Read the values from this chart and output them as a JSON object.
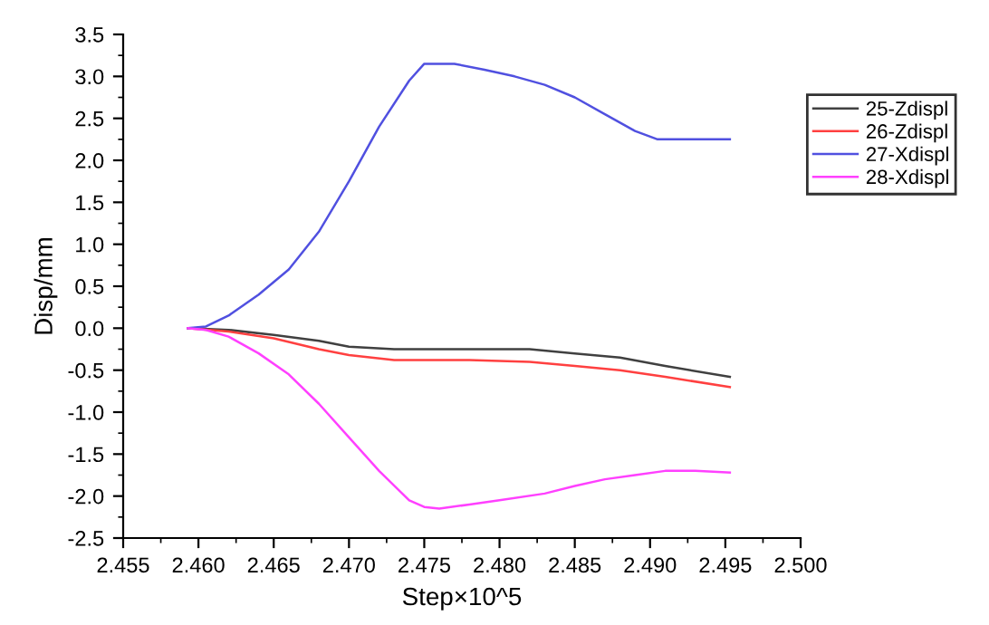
{
  "chart_data": {
    "type": "line",
    "xlabel": "Step×10^5",
    "ylabel": "Disp/mm",
    "xlim": [
      2.455,
      2.5
    ],
    "xticks": [
      {
        "value": 2.455,
        "label": "2.455"
      },
      {
        "value": 2.46,
        "label": "2.460"
      },
      {
        "value": 2.465,
        "label": "2.465"
      },
      {
        "value": 2.47,
        "label": "2.470"
      },
      {
        "value": 2.475,
        "label": "2.475"
      },
      {
        "value": 2.48,
        "label": "2.480"
      },
      {
        "value": 2.485,
        "label": "2.485"
      },
      {
        "value": 2.49,
        "label": "2.490"
      },
      {
        "value": 2.495,
        "label": "2.495"
      },
      {
        "value": 2.5,
        "label": "2.500"
      }
    ],
    "ylim": [
      -2.5,
      3.5
    ],
    "yticks": [
      {
        "value": -2.5,
        "label": "-2.5"
      },
      {
        "value": -2.0,
        "label": "-2.0"
      },
      {
        "value": -1.5,
        "label": "-1.5"
      },
      {
        "value": -1.0,
        "label": "-1.0"
      },
      {
        "value": -0.5,
        "label": "-0.5"
      },
      {
        "value": 0.0,
        "label": "0.0"
      },
      {
        "value": 0.5,
        "label": "0.5"
      },
      {
        "value": 1.0,
        "label": "1.0"
      },
      {
        "value": 1.5,
        "label": "1.5"
      },
      {
        "value": 2.0,
        "label": "2.0"
      },
      {
        "value": 2.5,
        "label": "2.5"
      },
      {
        "value": 3.0,
        "label": "3.0"
      },
      {
        "value": 3.5,
        "label": "3.5"
      }
    ],
    "grid": false,
    "legend": "top right",
    "marker": "none",
    "line_style": "solid",
    "series": [
      {
        "name": "25-Zdispl",
        "color": "#404040",
        "x": [
          2.4593,
          2.462,
          2.465,
          2.468,
          2.47,
          2.473,
          2.478,
          2.482,
          2.485,
          2.488,
          2.491,
          2.4953
        ],
        "values": [
          0,
          -0.02,
          -0.08,
          -0.15,
          -0.22,
          -0.25,
          -0.25,
          -0.25,
          -0.3,
          -0.35,
          -0.45,
          -0.58
        ]
      },
      {
        "name": "26-Zdispl",
        "color": "#ff4040",
        "x": [
          2.4593,
          2.462,
          2.465,
          2.468,
          2.47,
          2.473,
          2.478,
          2.482,
          2.485,
          2.488,
          2.491,
          2.4953
        ],
        "values": [
          0,
          -0.04,
          -0.12,
          -0.25,
          -0.32,
          -0.38,
          -0.38,
          -0.4,
          -0.45,
          -0.5,
          -0.58,
          -0.7
        ]
      },
      {
        "name": "27-Xdispl",
        "color": "#5050e0",
        "x": [
          2.4593,
          2.4605,
          2.462,
          2.464,
          2.466,
          2.468,
          2.47,
          2.472,
          2.474,
          2.475,
          2.477,
          2.479,
          2.481,
          2.483,
          2.485,
          2.487,
          2.489,
          2.4905,
          2.4953
        ],
        "values": [
          0,
          0.02,
          0.15,
          0.4,
          0.7,
          1.15,
          1.75,
          2.4,
          2.95,
          3.15,
          3.15,
          3.08,
          3.0,
          2.9,
          2.75,
          2.55,
          2.35,
          2.25,
          2.25
        ]
      },
      {
        "name": "28-Xdispl",
        "color": "#ff40ff",
        "x": [
          2.4593,
          2.4605,
          2.462,
          2.464,
          2.466,
          2.468,
          2.47,
          2.472,
          2.474,
          2.475,
          2.476,
          2.478,
          2.48,
          2.483,
          2.485,
          2.487,
          2.489,
          2.491,
          2.493,
          2.4953
        ],
        "values": [
          0,
          -0.02,
          -0.1,
          -0.3,
          -0.55,
          -0.9,
          -1.3,
          -1.7,
          -2.05,
          -2.13,
          -2.15,
          -2.1,
          -2.05,
          -1.97,
          -1.88,
          -1.8,
          -1.75,
          -1.7,
          -1.7,
          -1.72
        ]
      }
    ]
  }
}
